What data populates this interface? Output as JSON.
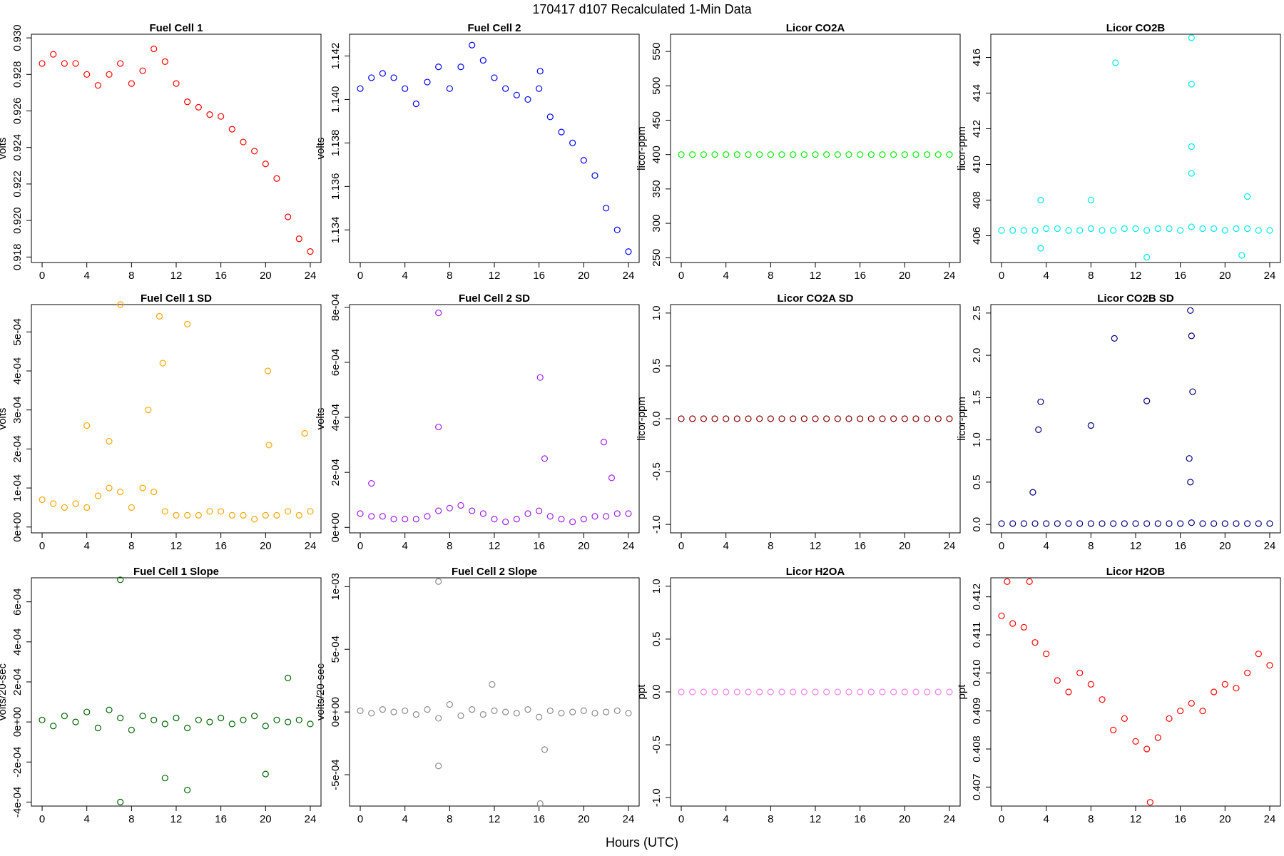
{
  "title": "170417   d107   Recalculated 1-Min Data",
  "xlabel": "Hours (UTC)",
  "chart_data": [
    {
      "type": "scatter",
      "title": "Fuel Cell 1",
      "ylabel": "volts",
      "color": "#ff0000",
      "x": [
        0,
        1,
        2,
        3,
        4,
        5,
        6,
        7,
        8,
        9,
        10,
        11,
        12,
        13,
        14,
        15,
        16,
        17,
        18,
        19,
        20,
        21,
        22,
        23,
        24
      ],
      "values": [
        0.9286,
        0.9291,
        0.9286,
        0.9286,
        0.928,
        0.9274,
        0.928,
        0.9286,
        0.9275,
        0.9282,
        0.9294,
        0.9287,
        0.9275,
        0.9265,
        0.9262,
        0.9258,
        0.9257,
        0.925,
        0.9243,
        0.9238,
        0.9231,
        0.9223,
        0.9202,
        0.919,
        0.9183
      ],
      "xlim": [
        -0.96,
        24.96
      ],
      "xticks": [
        0,
        4,
        8,
        12,
        16,
        20,
        24
      ],
      "ylim": [
        0.9177,
        0.9302
      ],
      "yticks": [
        {
          "value": 0.918,
          "label": "0.918"
        },
        {
          "value": 0.92,
          "label": "0.920"
        },
        {
          "value": 0.922,
          "label": "0.922"
        },
        {
          "value": 0.924,
          "label": "0.924"
        },
        {
          "value": 0.926,
          "label": "0.926"
        },
        {
          "value": 0.928,
          "label": "0.928"
        },
        {
          "value": 0.93,
          "label": "0.930"
        }
      ]
    },
    {
      "type": "scatter",
      "title": "Fuel Cell 2",
      "ylabel": "volts",
      "color": "#0000ff",
      "x": [
        0,
        1,
        2,
        3,
        4,
        5,
        6,
        7,
        8,
        9,
        10,
        11,
        12,
        13,
        14,
        15,
        16,
        17,
        18,
        19,
        20,
        21,
        22,
        23,
        24,
        16.1
      ],
      "values": [
        1.1405,
        1.141,
        1.1412,
        1.141,
        1.1405,
        1.1398,
        1.1408,
        1.1415,
        1.1405,
        1.1415,
        1.1425,
        1.1418,
        1.141,
        1.1405,
        1.1402,
        1.14,
        1.1405,
        1.1392,
        1.1385,
        1.138,
        1.1372,
        1.1365,
        1.135,
        1.134,
        1.133,
        1.1413
      ],
      "xlim": [
        -0.96,
        24.96
      ],
      "xticks": [
        0,
        4,
        8,
        12,
        16,
        20,
        24
      ],
      "ylim": [
        1.1325,
        1.143
      ],
      "yticks": [
        {
          "value": 1.134,
          "label": "1.134"
        },
        {
          "value": 1.136,
          "label": "1.136"
        },
        {
          "value": 1.138,
          "label": "1.138"
        },
        {
          "value": 1.14,
          "label": "1.140"
        },
        {
          "value": 1.142,
          "label": "1.142"
        }
      ]
    },
    {
      "type": "scatter",
      "title": "Licor CO2A",
      "ylabel": "licor-ppm",
      "color": "#00ee00",
      "x": [
        0,
        1,
        2,
        3,
        4,
        5,
        6,
        7,
        8,
        9,
        10,
        11,
        12,
        13,
        14,
        15,
        16,
        17,
        18,
        19,
        20,
        21,
        22,
        23,
        24
      ],
      "values": [
        400,
        400,
        400,
        400,
        400,
        400,
        400,
        400,
        400,
        400,
        400,
        400,
        400,
        400,
        400,
        400,
        400,
        400,
        400,
        400,
        400,
        400,
        400,
        400,
        400
      ],
      "xlim": [
        -0.96,
        24.96
      ],
      "xticks": [
        0,
        4,
        8,
        12,
        16,
        20,
        24
      ],
      "ylim": [
        243,
        575
      ],
      "yticks": [
        250,
        300,
        350,
        400,
        450,
        500,
        550
      ]
    },
    {
      "type": "scatter",
      "title": "Licor CO2B",
      "ylabel": "licor-ppm",
      "color": "#00eeee",
      "x": [
        0,
        1,
        2,
        3,
        4,
        5,
        6,
        7,
        8,
        9,
        10,
        11,
        12,
        13,
        14,
        15,
        16,
        17,
        18,
        19,
        20,
        21,
        22,
        23,
        24,
        3.5,
        3.5,
        8,
        10.2,
        13,
        17,
        17,
        17,
        17,
        21.5,
        22
      ],
      "values": [
        406.3,
        406.3,
        406.3,
        406.3,
        406.4,
        406.4,
        406.3,
        406.3,
        406.4,
        406.3,
        406.3,
        406.4,
        406.4,
        406.3,
        406.4,
        406.4,
        406.3,
        406.5,
        406.4,
        406.4,
        406.3,
        406.4,
        406.4,
        406.3,
        406.3,
        408,
        405.3,
        408,
        415.7,
        404.8,
        417.1,
        414.5,
        411,
        409.5,
        404.9,
        408.2
      ],
      "xlim": [
        -0.96,
        24.96
      ],
      "xticks": [
        0,
        4,
        8,
        12,
        16,
        20,
        24
      ],
      "ylim": [
        404.5,
        417.3
      ],
      "yticks": [
        406,
        408,
        410,
        412,
        414,
        416
      ]
    },
    {
      "type": "scatter",
      "title": "Fuel Cell 1 SD",
      "ylabel": "volts",
      "color": "#ffa500",
      "x": [
        0,
        1,
        2,
        3,
        4,
        5,
        6,
        7,
        8,
        9,
        10,
        11,
        12,
        13,
        14,
        15,
        16,
        17,
        18,
        19,
        20,
        21,
        22,
        23,
        24,
        7,
        10.5,
        10.8,
        13,
        4,
        6,
        9.5,
        20.2,
        20.3,
        23.5
      ],
      "values": [
        7e-05,
        6e-05,
        5e-05,
        6e-05,
        5e-05,
        8e-05,
        0.0001,
        9e-05,
        5e-05,
        0.0001,
        9e-05,
        4e-05,
        3e-05,
        3e-05,
        3e-05,
        4e-05,
        4e-05,
        3e-05,
        3e-05,
        2e-05,
        3e-05,
        3e-05,
        4e-05,
        3e-05,
        4e-05,
        0.00057,
        0.00054,
        0.00042,
        0.00052,
        0.00026,
        0.00022,
        0.0003,
        0.0004,
        0.00021,
        0.00024
      ],
      "xlim": [
        -0.96,
        24.96
      ],
      "xticks": [
        0,
        4,
        8,
        12,
        16,
        20,
        24
      ],
      "ylim": [
        -1.5e-05,
        0.00057
      ],
      "yticks": [
        {
          "value": 0,
          "label": "0e+00"
        },
        {
          "value": 0.0001,
          "label": "1e-04"
        },
        {
          "value": 0.0002,
          "label": "2e-04"
        },
        {
          "value": 0.0003,
          "label": "3e-04"
        },
        {
          "value": 0.0004,
          "label": "4e-04"
        },
        {
          "value": 0.0005,
          "label": "5e-04"
        }
      ]
    },
    {
      "type": "scatter",
      "title": "Fuel Cell 2 SD",
      "ylabel": "volts",
      "color": "#a020f0",
      "x": [
        0,
        1,
        2,
        3,
        4,
        5,
        6,
        7,
        8,
        9,
        10,
        11,
        12,
        13,
        14,
        15,
        16,
        17,
        18,
        19,
        20,
        21,
        22,
        23,
        24,
        7,
        7,
        16.1,
        16.5,
        21.8,
        22.5,
        1
      ],
      "values": [
        5e-05,
        4e-05,
        4e-05,
        3e-05,
        3e-05,
        3e-05,
        4e-05,
        6e-05,
        7e-05,
        8e-05,
        6e-05,
        5e-05,
        3e-05,
        2e-05,
        3e-05,
        5e-05,
        6e-05,
        4e-05,
        3e-05,
        2e-05,
        3e-05,
        4e-05,
        4e-05,
        5e-05,
        5e-05,
        0.00078,
        0.000365,
        0.000545,
        0.00025,
        0.00031,
        0.00018,
        0.00016
      ],
      "xlim": [
        -0.96,
        24.96
      ],
      "xticks": [
        0,
        4,
        8,
        12,
        16,
        20,
        24
      ],
      "ylim": [
        -2e-05,
        0.00081
      ],
      "yticks": [
        {
          "value": 0,
          "label": "0e+00"
        },
        {
          "value": 0.0002,
          "label": "2e-04"
        },
        {
          "value": 0.0004,
          "label": "4e-04"
        },
        {
          "value": 0.0006,
          "label": "6e-04"
        },
        {
          "value": 0.0008,
          "label": "8e-04"
        }
      ]
    },
    {
      "type": "scatter",
      "title": "Licor CO2A SD",
      "ylabel": "licor-ppm",
      "color": "#8b0000",
      "x": [
        0,
        1,
        2,
        3,
        4,
        5,
        6,
        7,
        8,
        9,
        10,
        11,
        12,
        13,
        14,
        15,
        16,
        17,
        18,
        19,
        20,
        21,
        22,
        23,
        24
      ],
      "values": [
        0,
        0,
        0,
        0,
        0,
        0,
        0,
        0,
        0,
        0,
        0,
        0,
        0,
        0,
        0,
        0,
        0,
        0,
        0,
        0,
        0,
        0,
        0,
        0,
        0
      ],
      "xlim": [
        -0.96,
        24.96
      ],
      "xticks": [
        0,
        4,
        8,
        12,
        16,
        20,
        24
      ],
      "ylim": [
        -1.08,
        1.08
      ],
      "yticks": [
        {
          "value": -1,
          "label": "-1.0"
        },
        -0.5,
        {
          "value": 0,
          "label": "0.0"
        },
        0.5,
        {
          "value": 1,
          "label": "1.0"
        }
      ]
    },
    {
      "type": "scatter",
      "title": "Licor CO2B SD",
      "ylabel": "licor-ppm",
      "color": "#000080",
      "x": [
        0,
        1,
        2,
        3,
        4,
        5,
        6,
        7,
        8,
        9,
        10,
        11,
        12,
        13,
        14,
        15,
        16,
        17,
        18,
        19,
        20,
        21,
        22,
        23,
        24,
        3.5,
        3.3,
        10.1,
        16.9,
        17,
        17.1,
        13,
        8,
        2.8,
        16.8,
        16.9
      ],
      "values": [
        0.01,
        0.01,
        0.01,
        0.01,
        0.01,
        0.01,
        0.01,
        0.01,
        0.01,
        0.01,
        0.01,
        0.01,
        0.01,
        0.01,
        0.01,
        0.01,
        0.01,
        0.02,
        0.01,
        0.01,
        0.01,
        0.01,
        0.01,
        0.01,
        0.01,
        1.45,
        1.12,
        2.2,
        2.53,
        2.23,
        1.57,
        1.46,
        1.17,
        0.38,
        0.78,
        0.5
      ],
      "xlim": [
        -0.96,
        24.96
      ],
      "xticks": [
        0,
        4,
        8,
        12,
        16,
        20,
        24
      ],
      "ylim": [
        -0.1,
        2.6
      ],
      "yticks": [
        {
          "value": 0,
          "label": "0.0"
        },
        0.5,
        {
          "value": 1,
          "label": "1.0"
        },
        1.5,
        {
          "value": 2,
          "label": "2.0"
        },
        2.5
      ]
    },
    {
      "type": "scatter",
      "title": "Fuel Cell 1 Slope",
      "ylabel": "volts/20-sec",
      "color": "#006400",
      "x": [
        0,
        1,
        2,
        3,
        4,
        5,
        6,
        7,
        8,
        9,
        10,
        11,
        12,
        13,
        14,
        15,
        16,
        17,
        18,
        19,
        20,
        21,
        22,
        23,
        24,
        7,
        7,
        13,
        11,
        22,
        20
      ],
      "values": [
        1e-05,
        -2e-05,
        3e-05,
        0,
        5e-05,
        -3e-05,
        6e-05,
        2e-05,
        -4e-05,
        3e-05,
        1e-05,
        -1e-05,
        2e-05,
        -3e-05,
        1e-05,
        0,
        2e-05,
        -1e-05,
        1e-05,
        3e-05,
        -2e-05,
        1e-05,
        0,
        1e-05,
        -1e-05,
        0.00071,
        -0.0004,
        -0.00034,
        -0.00028,
        0.00022,
        -0.00026
      ],
      "xlim": [
        -0.96,
        24.96
      ],
      "xticks": [
        0,
        4,
        8,
        12,
        16,
        20,
        24
      ],
      "ylim": [
        -0.00042,
        0.00072
      ],
      "yticks": [
        {
          "value": -0.0004,
          "label": "-4e-04"
        },
        {
          "value": -0.0002,
          "label": "-2e-04"
        },
        {
          "value": 0,
          "label": "0e+00"
        },
        {
          "value": 0.0002,
          "label": "2e-04"
        },
        {
          "value": 0.0004,
          "label": "4e-04"
        },
        {
          "value": 0.0006,
          "label": "6e-04"
        }
      ]
    },
    {
      "type": "scatter",
      "title": "Fuel Cell 2 Slope",
      "ylabel": "volts/20-sec",
      "color": "#8c8c8c",
      "x": [
        0,
        1,
        2,
        3,
        4,
        5,
        6,
        7,
        8,
        9,
        10,
        11,
        12,
        13,
        14,
        15,
        16,
        17,
        18,
        19,
        20,
        21,
        22,
        23,
        24,
        7,
        7,
        16.1,
        16.5,
        11.8
      ],
      "values": [
        1e-05,
        -1e-05,
        2e-05,
        0,
        1e-05,
        -2e-05,
        2e-05,
        -5e-05,
        6e-05,
        -3e-05,
        2e-05,
        -2e-05,
        1e-05,
        0,
        -1e-05,
        2e-05,
        -4e-05,
        1e-05,
        -1e-05,
        0,
        1e-05,
        -1e-05,
        0,
        1e-05,
        -1e-05,
        0.00104,
        -0.00043,
        -0.00073,
        -0.0003,
        0.00022
      ],
      "xlim": [
        -0.96,
        24.96
      ],
      "xticks": [
        0,
        4,
        8,
        12,
        16,
        20,
        24
      ],
      "ylim": [
        -0.00075,
        0.00107
      ],
      "yticks": [
        {
          "value": -0.0005,
          "label": "-5e-04"
        },
        {
          "value": 0,
          "label": "0e+00"
        },
        {
          "value": 0.0005,
          "label": "5e-04"
        },
        {
          "value": 0.001,
          "label": "1e-03"
        }
      ]
    },
    {
      "type": "scatter",
      "title": "Licor H2OA",
      "ylabel": "ppt",
      "color": "#ee82ee",
      "x": [
        0,
        1,
        2,
        3,
        4,
        5,
        6,
        7,
        8,
        9,
        10,
        11,
        12,
        13,
        14,
        15,
        16,
        17,
        18,
        19,
        20,
        21,
        22,
        23,
        24
      ],
      "values": [
        0,
        0,
        0,
        0,
        0,
        0,
        0,
        0,
        0,
        0,
        0,
        0,
        0,
        0,
        0,
        0,
        0,
        0,
        0,
        0,
        0,
        0,
        0,
        0,
        0
      ],
      "xlim": [
        -0.96,
        24.96
      ],
      "xticks": [
        0,
        4,
        8,
        12,
        16,
        20,
        24
      ],
      "ylim": [
        -1.08,
        1.08
      ],
      "yticks": [
        {
          "value": -1,
          "label": "-1.0"
        },
        -0.5,
        {
          "value": 0,
          "label": "0.0"
        },
        0.5,
        {
          "value": 1,
          "label": "1.0"
        }
      ]
    },
    {
      "type": "scatter",
      "title": "Licor H2OB",
      "ylabel": "ppt",
      "color": "#ff0000",
      "x": [
        0,
        1,
        2,
        3,
        4,
        5,
        6,
        7,
        8,
        9,
        10,
        11,
        12,
        13,
        14,
        15,
        16,
        17,
        18,
        19,
        20,
        21,
        22,
        23,
        24,
        13.3,
        0.5,
        2.5
      ],
      "values": [
        0.4115,
        0.4113,
        0.4112,
        0.4108,
        0.4105,
        0.4098,
        0.4095,
        0.41,
        0.4097,
        0.4093,
        0.4085,
        0.4088,
        0.4082,
        0.408,
        0.4083,
        0.4088,
        0.409,
        0.4092,
        0.409,
        0.4095,
        0.4097,
        0.4096,
        0.41,
        0.4105,
        0.4102,
        0.4066,
        0.4124,
        0.4124
      ],
      "xlim": [
        -0.96,
        24.96
      ],
      "xticks": [
        0,
        4,
        8,
        12,
        16,
        20,
        24
      ],
      "ylim": [
        0.4065,
        0.4125
      ],
      "yticks": [
        {
          "value": 0.407,
          "label": "0.407"
        },
        {
          "value": 0.408,
          "label": "0.408"
        },
        {
          "value": 0.409,
          "label": "0.409"
        },
        {
          "value": 0.41,
          "label": "0.410"
        },
        {
          "value": 0.411,
          "label": "0.411"
        },
        {
          "value": 0.412,
          "label": "0.412"
        }
      ]
    }
  ]
}
